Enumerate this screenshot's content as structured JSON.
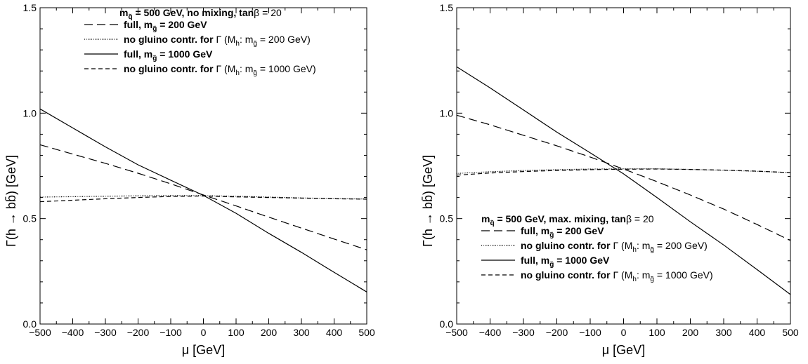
{
  "chart_data": [
    {
      "type": "line",
      "xlabel": "μ [GeV]",
      "ylabel": "Γ(h → bb̄) [GeV]",
      "xlim": [
        -500,
        500
      ],
      "ylim": [
        0.0,
        1.5
      ],
      "xticks": [
        -500,
        -400,
        -300,
        -200,
        -100,
        0,
        100,
        200,
        300,
        400,
        500
      ],
      "yticks": [
        0.0,
        0.5,
        1.0,
        1.5
      ],
      "xtick_labels": [
        "−500",
        "−400",
        "−300",
        "−200",
        "−100",
        "0",
        "100",
        "200",
        "300",
        "400",
        "500"
      ],
      "ytick_labels": [
        "0.0",
        "0.5",
        "1.0",
        "1.5"
      ],
      "grid": false,
      "legend_placement": "top-left",
      "legend_title": {
        "pre": "m",
        "sub": "q̃",
        "post": " = 500 GeV, no mixing, tan",
        "beta": "β",
        "post2": " = 20"
      },
      "series": [
        {
          "label": "full, m",
          "sub": "g̃",
          "post": " = 200 GeV",
          "label_rest": "",
          "dash": "12,6",
          "x": [
            -500,
            -400,
            -300,
            -200,
            -100,
            0,
            100,
            200,
            300,
            400,
            500
          ],
          "values": [
            0.85,
            0.806,
            0.762,
            0.715,
            0.665,
            0.612,
            0.56,
            0.507,
            0.455,
            0.403,
            0.352
          ]
        },
        {
          "label": "no gluino contr. for ",
          "sub": "",
          "post": "",
          "label_rest": "Γ (M",
          "rest_sub": "h",
          "rest_mid": ": m",
          "rest_sub2": "g̃",
          "rest_post": " = 200 GeV)",
          "dash": "1,1.5",
          "x": [
            -500,
            -400,
            -300,
            -200,
            -100,
            0,
            100,
            200,
            300,
            400,
            500
          ],
          "values": [
            0.602,
            0.604,
            0.606,
            0.608,
            0.609,
            0.609,
            0.606,
            0.602,
            0.598,
            0.595,
            0.593
          ]
        },
        {
          "label": "full, m",
          "sub": "g̃",
          "post": " = 1000 GeV",
          "label_rest": "",
          "dash": "",
          "x": [
            -500,
            -400,
            -300,
            -200,
            -100,
            0,
            100,
            200,
            300,
            400,
            500
          ],
          "values": [
            1.02,
            0.93,
            0.84,
            0.755,
            0.682,
            0.61,
            0.525,
            0.43,
            0.34,
            0.245,
            0.152
          ]
        },
        {
          "label": "no gluino contr. for ",
          "sub": "",
          "post": "",
          "label_rest": "Γ (M",
          "rest_sub": "h",
          "rest_mid": ": m",
          "rest_sub2": "g̃",
          "rest_post": " = 1000 GeV)",
          "dash": "6,4",
          "x": [
            -500,
            -400,
            -300,
            -200,
            -100,
            0,
            100,
            200,
            300,
            400,
            500
          ],
          "values": [
            0.58,
            0.587,
            0.594,
            0.6,
            0.605,
            0.607,
            0.603,
            0.6,
            0.597,
            0.594,
            0.592
          ]
        }
      ]
    },
    {
      "type": "line",
      "xlabel": "μ [GeV]",
      "ylabel": "Γ(h → bb̄) [GeV]",
      "xlim": [
        -500,
        500
      ],
      "ylim": [
        0.0,
        1.5
      ],
      "xticks": [
        -500,
        -400,
        -300,
        -200,
        -100,
        0,
        100,
        200,
        300,
        400,
        500
      ],
      "yticks": [
        0.0,
        0.5,
        1.0,
        1.5
      ],
      "xtick_labels": [
        "−500",
        "−400",
        "−300",
        "−200",
        "−100",
        "0",
        "100",
        "200",
        "300",
        "400",
        "500"
      ],
      "ytick_labels": [
        "0.0",
        "0.5",
        "1.0",
        "1.5"
      ],
      "grid": false,
      "legend_placement": "bottom-left",
      "legend_title": {
        "pre": "m",
        "sub": "q̃",
        "post": " = 500 GeV, max. mixing, tan",
        "beta": "β",
        "post2": " = 20"
      },
      "series": [
        {
          "label": "full, m",
          "sub": "g̃",
          "post": " = 200 GeV",
          "label_rest": "",
          "dash": "12,6",
          "x": [
            -500,
            -400,
            -300,
            -200,
            -100,
            0,
            100,
            200,
            300,
            400,
            500
          ],
          "values": [
            0.99,
            0.945,
            0.895,
            0.845,
            0.792,
            0.735,
            0.675,
            0.612,
            0.545,
            0.472,
            0.396
          ]
        },
        {
          "label": "no gluino contr. for ",
          "sub": "",
          "post": "",
          "label_rest": "Γ (M",
          "rest_sub": "h",
          "rest_mid": ": m",
          "rest_sub2": "g̃",
          "rest_post": " = 200 GeV)",
          "dash": "1,1.5",
          "x": [
            -500,
            -400,
            -300,
            -200,
            -100,
            0,
            100,
            200,
            300,
            400,
            500
          ],
          "values": [
            0.714,
            0.722,
            0.728,
            0.732,
            0.735,
            0.736,
            0.736,
            0.733,
            0.729,
            0.724,
            0.718
          ]
        },
        {
          "label": "full, m",
          "sub": "g̃",
          "post": " = 1000 GeV",
          "label_rest": "",
          "dash": "",
          "x": [
            -500,
            -400,
            -300,
            -200,
            -100,
            0,
            100,
            200,
            300,
            400,
            500
          ],
          "values": [
            1.22,
            1.12,
            1.015,
            0.91,
            0.812,
            0.712,
            0.6,
            0.485,
            0.375,
            0.258,
            0.14
          ]
        },
        {
          "label": "no gluino contr. for ",
          "sub": "",
          "post": "",
          "label_rest": "Γ (M",
          "rest_sub": "h",
          "rest_mid": ": m",
          "rest_sub2": "g̃",
          "rest_post": " = 1000 GeV)",
          "dash": "6,4",
          "x": [
            -500,
            -400,
            -300,
            -200,
            -100,
            0,
            100,
            200,
            300,
            400,
            500
          ],
          "values": [
            0.706,
            0.716,
            0.723,
            0.728,
            0.732,
            0.734,
            0.735,
            0.733,
            0.73,
            0.725,
            0.718
          ]
        }
      ]
    }
  ]
}
